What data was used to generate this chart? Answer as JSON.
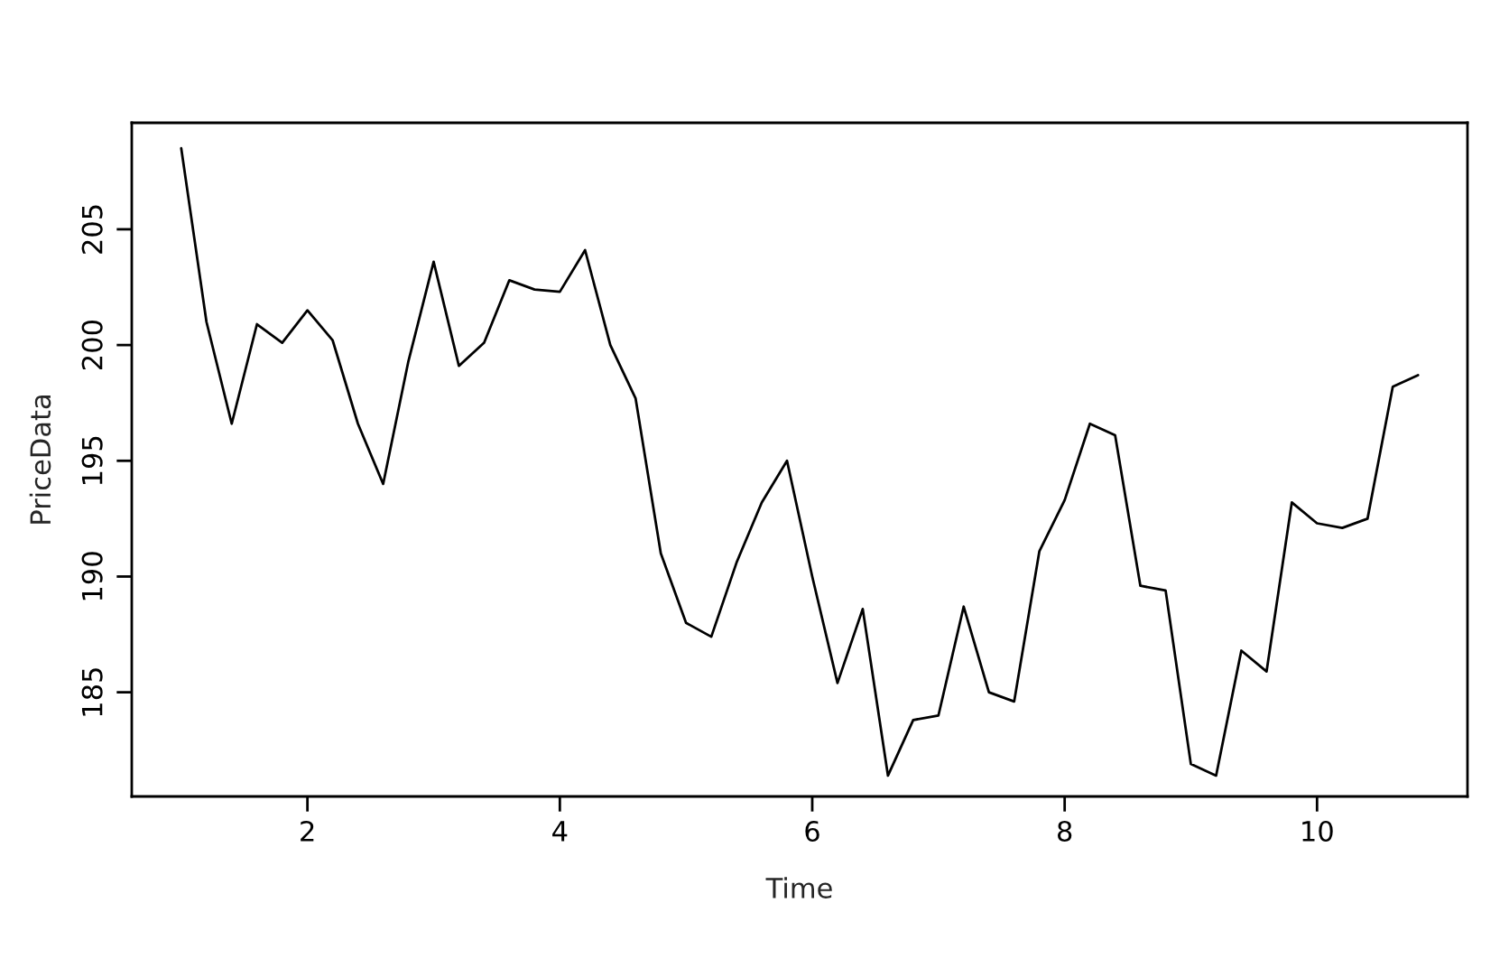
{
  "chart_data": {
    "type": "line",
    "xlabel": "Time",
    "ylabel": "PriceData",
    "x": [
      1.0,
      1.2,
      1.4,
      1.6,
      1.8,
      2.0,
      2.2,
      2.4,
      2.6,
      2.8,
      3.0,
      3.2,
      3.4,
      3.6,
      3.8,
      4.0,
      4.2,
      4.4,
      4.6,
      4.8,
      5.0,
      5.2,
      5.4,
      5.6,
      5.8,
      6.0,
      6.2,
      6.4,
      6.6,
      6.8,
      7.0,
      7.2,
      7.4,
      7.6,
      7.8,
      8.0,
      8.2,
      8.4,
      8.6,
      8.8,
      9.0,
      9.2,
      9.4,
      9.6,
      9.8,
      10.0,
      10.2,
      10.4,
      10.6,
      10.8
    ],
    "series": [
      {
        "color": "#000000",
        "values": [
          208.5,
          201.0,
          196.6,
          200.9,
          200.1,
          201.5,
          200.2,
          196.6,
          194.0,
          199.3,
          203.6,
          199.1,
          200.1,
          202.8,
          202.4,
          202.3,
          204.1,
          200.0,
          197.7,
          191.0,
          188.0,
          187.4,
          190.6,
          193.2,
          195.0,
          190.0,
          185.4,
          188.6,
          181.4,
          183.8,
          184.0,
          188.7,
          185.0,
          184.6,
          191.1,
          193.3,
          196.6,
          196.1,
          189.6,
          189.4,
          181.9,
          181.4,
          186.8,
          185.9,
          193.2,
          192.3,
          192.1,
          192.5,
          198.2,
          198.7
        ]
      }
    ],
    "xlim": [
      0.608,
      11.192
    ],
    "ylim": [
      180.5,
      209.6
    ],
    "xticks": [
      2,
      4,
      6,
      8,
      10
    ],
    "yticks": [
      185,
      190,
      195,
      200,
      205
    ],
    "grid": false,
    "legend": false,
    "line_style": "solid",
    "marker": "none"
  }
}
